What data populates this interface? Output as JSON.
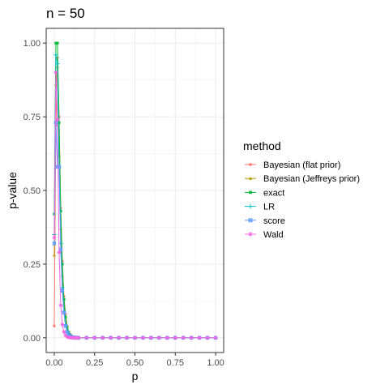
{
  "chart_data": {
    "type": "line",
    "title": "n =  50",
    "xlabel": "p",
    "ylabel": "p-value",
    "xlim": [
      -0.05,
      1.05
    ],
    "ylim": [
      -0.05,
      1.05
    ],
    "xticks": [
      0.0,
      0.25,
      0.5,
      0.75,
      1.0
    ],
    "xtick_labels": [
      "0.00",
      "0.25",
      "0.50",
      "0.75",
      "1.00"
    ],
    "yticks": [
      0.0,
      0.25,
      0.5,
      0.75,
      1.0
    ],
    "ytick_labels": [
      "0.00",
      "0.25",
      "0.50",
      "0.75",
      "1.00"
    ],
    "grid": true,
    "legend": {
      "title": "method",
      "placement": "right"
    },
    "x": [
      0.0,
      0.01,
      0.02,
      0.03,
      0.04,
      0.05,
      0.06,
      0.07,
      0.08,
      0.09,
      0.1,
      0.11,
      0.12,
      0.13,
      0.14,
      0.15,
      0.2,
      0.25,
      0.3,
      0.35,
      0.4,
      0.45,
      0.5,
      0.55,
      0.6,
      0.65,
      0.7,
      0.75,
      0.8,
      0.85,
      0.9,
      0.95,
      1.0
    ],
    "series": [
      {
        "name": "Bayesian (flat prior)",
        "color": "#F8766D",
        "marker": "circle",
        "values": [
          0.04,
          0.72,
          0.95,
          0.75,
          0.44,
          0.26,
          0.14,
          0.08,
          0.04,
          0.02,
          0.012,
          0.006,
          0.003,
          0.0015,
          0.0008,
          0.0004,
          0.0,
          0.0,
          0.0,
          0.0,
          0.0,
          0.0,
          0.0,
          0.0,
          0.0,
          0.0,
          0.0,
          0.0,
          0.0,
          0.0,
          0.0,
          0.0,
          0.0
        ]
      },
      {
        "name": "Bayesian (Jeffreys prior)",
        "color": "#B79F00",
        "marker": "triangle",
        "values": [
          0.28,
          0.86,
          0.92,
          0.62,
          0.37,
          0.21,
          0.11,
          0.06,
          0.03,
          0.016,
          0.008,
          0.004,
          0.002,
          0.001,
          0.0005,
          0.0002,
          0.0,
          0.0,
          0.0,
          0.0,
          0.0,
          0.0,
          0.0,
          0.0,
          0.0,
          0.0,
          0.0,
          0.0,
          0.0,
          0.0,
          0.0,
          0.0,
          0.0
        ]
      },
      {
        "name": "exact",
        "color": "#00BA38",
        "marker": "square",
        "values": [
          0.42,
          1.0,
          1.0,
          0.73,
          0.43,
          0.25,
          0.13,
          0.07,
          0.035,
          0.018,
          0.009,
          0.004,
          0.002,
          0.001,
          0.0005,
          0.0002,
          0.0,
          0.0,
          0.0,
          0.0,
          0.0,
          0.0,
          0.0,
          0.0,
          0.0,
          0.0,
          0.0,
          0.0,
          0.0,
          0.0,
          0.0,
          0.0,
          0.0
        ]
      },
      {
        "name": "LR",
        "color": "#00BFC4",
        "marker": "plus",
        "values": [
          0.35,
          0.96,
          0.93,
          0.58,
          0.32,
          0.17,
          0.09,
          0.045,
          0.022,
          0.011,
          0.005,
          0.0025,
          0.0012,
          0.0006,
          0.0003,
          0.0001,
          0.0,
          0.0,
          0.0,
          0.0,
          0.0,
          0.0,
          0.0,
          0.0,
          0.0,
          0.0,
          0.0,
          0.0,
          0.0,
          0.0,
          0.0,
          0.0,
          0.0
        ]
      },
      {
        "name": "score",
        "color": "#619CFF",
        "marker": "square-cross",
        "values": [
          0.32,
          0.73,
          0.58,
          0.58,
          0.3,
          0.16,
          0.085,
          0.04,
          0.02,
          0.01,
          0.005,
          0.0025,
          0.0012,
          0.0006,
          0.0003,
          0.0001,
          0.0,
          0.0,
          0.0,
          0.0,
          0.0,
          0.0,
          0.0,
          0.0,
          0.0,
          0.0,
          0.0,
          0.0,
          0.0,
          0.0,
          0.0,
          0.0,
          0.0
        ]
      },
      {
        "name": "Wald",
        "color": "#F564E3",
        "marker": "star",
        "values": [
          0.34,
          0.9,
          0.74,
          0.29,
          0.11,
          0.045,
          0.02,
          0.008,
          0.003,
          0.0012,
          0.0005,
          0.0002,
          0.0,
          0.0,
          0.0,
          0.0,
          0.0,
          0.0,
          0.0,
          0.0,
          0.0,
          0.0,
          0.0,
          0.0,
          0.0,
          0.0,
          0.0,
          0.0,
          0.0,
          0.0,
          0.0,
          0.0,
          0.0
        ]
      }
    ]
  }
}
